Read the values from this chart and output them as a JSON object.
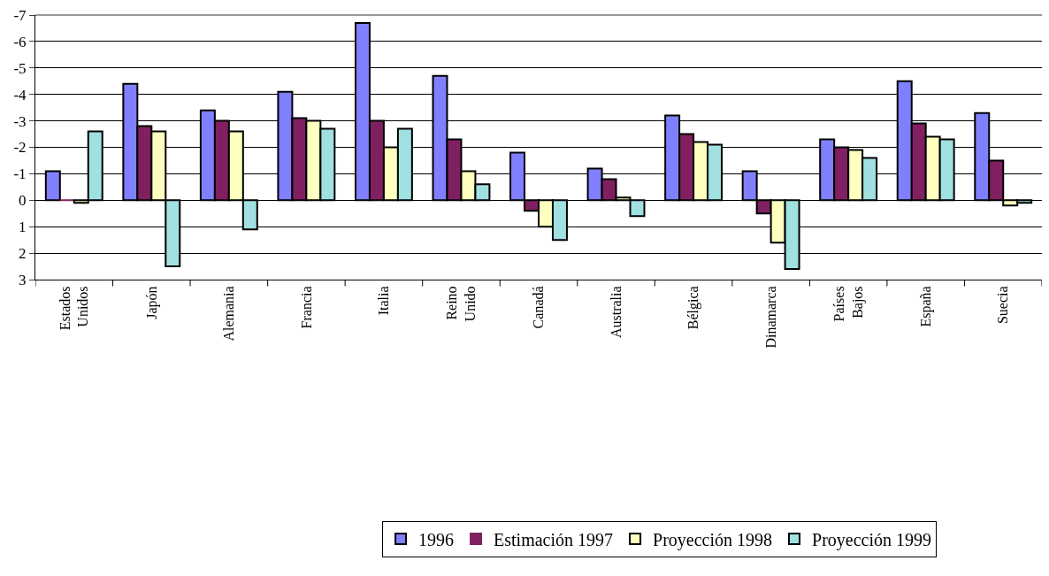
{
  "chart_data": {
    "type": "bar",
    "categories": [
      "Estados Unidos",
      "Japón",
      "Alemania",
      "Francia",
      "Italia",
      "Reino Unido",
      "Canadá",
      "Australia",
      "Bélgica",
      "Dinamarca",
      "Países Bajos",
      "España",
      "Suecia"
    ],
    "series": [
      {
        "name": "1996",
        "color": "#8080ff",
        "values": [
          -1.1,
          -4.4,
          -3.4,
          -4.1,
          -6.7,
          -4.7,
          -1.8,
          -1.2,
          -3.2,
          -1.1,
          -2.3,
          -4.5,
          -3.3
        ]
      },
      {
        "name": "Estimación 1997",
        "color": "#802060",
        "values": [
          0.0,
          -2.8,
          -3.0,
          -3.1,
          -3.0,
          -2.3,
          0.4,
          -0.8,
          -2.5,
          0.5,
          -2.0,
          -2.9,
          -1.5
        ]
      },
      {
        "name": "Proyección 1998",
        "color": "#ffffc0",
        "values": [
          0.1,
          -2.6,
          -2.6,
          -3.0,
          -2.0,
          -1.1,
          1.0,
          -0.1,
          -2.2,
          1.6,
          -1.9,
          -2.4,
          0.2
        ]
      },
      {
        "name": "Proyección 1999",
        "color": "#a0e0e0",
        "values": [
          -2.6,
          2.5,
          1.1,
          -2.7,
          -2.7,
          -0.6,
          1.5,
          0.6,
          -2.1,
          2.6,
          -1.6,
          -2.3,
          0.1
        ]
      }
    ],
    "ylim": [
      3,
      -7
    ],
    "yticks": [
      3,
      2,
      1,
      0,
      -1,
      -2,
      -3,
      -4,
      -5,
      -6,
      -7
    ],
    "grid": "y",
    "legend": "bottom"
  }
}
